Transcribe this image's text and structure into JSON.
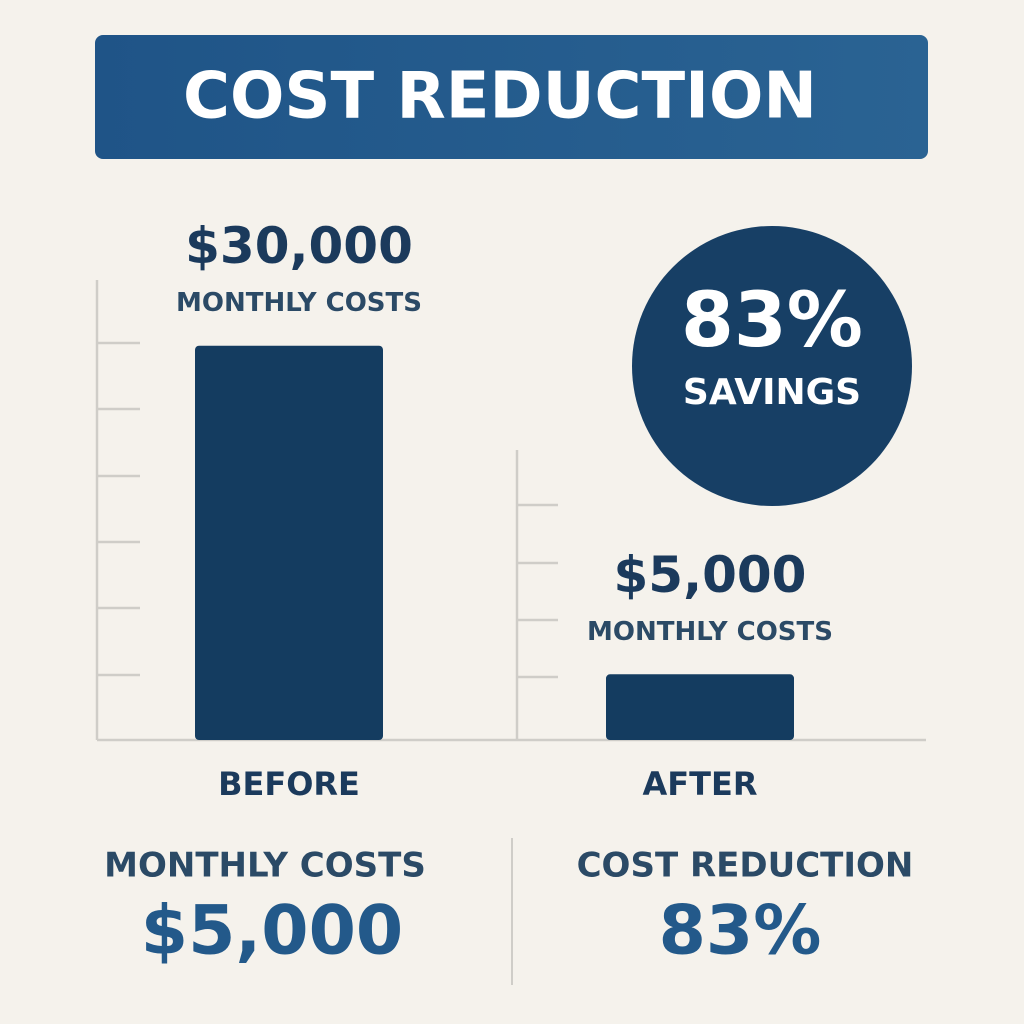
{
  "chart_data": {
    "type": "bar",
    "title": "COST REDUCTION",
    "categories": [
      "BEFORE",
      "AFTER"
    ],
    "values": [
      30000,
      5000
    ],
    "value_labels": [
      "$30,000",
      "$5,000"
    ],
    "bar_captions": [
      "MONTHLY COSTS",
      "MONTHLY COSTS"
    ],
    "color": "#143c60",
    "ylim": [
      0,
      35000
    ],
    "badge": {
      "text": "83%",
      "caption": "SAVINGS"
    },
    "stats": [
      {
        "label": "MONTHLY COSTS",
        "value": "$5,000"
      },
      {
        "label": "COST REDUCTION",
        "value": "83%"
      }
    ]
  }
}
